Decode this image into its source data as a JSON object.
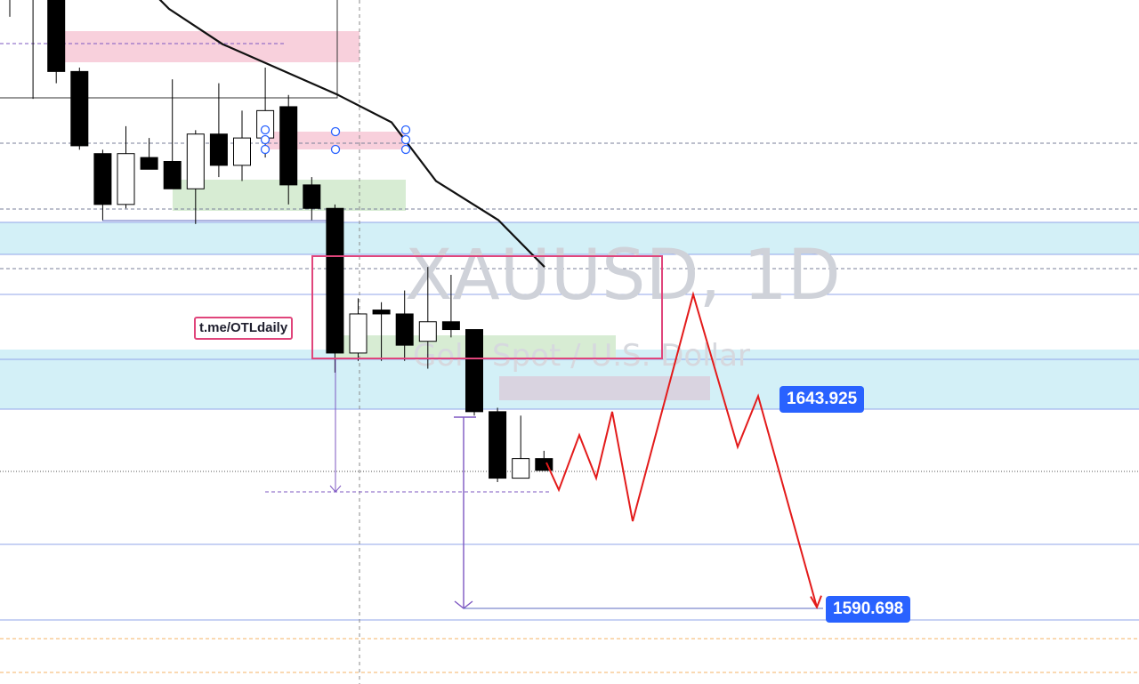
{
  "watermark": {
    "symbol": "XAUUSD, 1D",
    "description": "Gold Spot / U.S. Dollar"
  },
  "annotation": {
    "link_text": "t.me/OTLdaily"
  },
  "price_labels": {
    "upper": "1643.925",
    "lower": "1590.698"
  },
  "colors": {
    "bull_fill": "#ffffff",
    "bear_fill": "#000000",
    "supply_zone": "#f8d0dc",
    "demand_zone": "#d7ecd3",
    "blue_zone": "#d3f0f7",
    "grey_zone": "#d9cfdd",
    "projection": "#e31b1b",
    "price_tag": "#2962ff",
    "ma_line": "#111111",
    "measure": "#7e57c2",
    "range_box": "#e0457b"
  },
  "chart_data": {
    "type": "candlestick",
    "symbol": "XAUUSD",
    "timeframe": "1D",
    "candles": [
      {
        "o": 1750.0,
        "h": 1765.0,
        "l": 1742.0,
        "c": 1748.0
      },
      {
        "o": 1748.0,
        "h": 1755.0,
        "l": 1721.0,
        "c": 1748.0
      },
      {
        "o": 1747.0,
        "h": 1752.0,
        "l": 1725.0,
        "c": 1728.0
      },
      {
        "o": 1728.0,
        "h": 1729.0,
        "l": 1708.0,
        "c": 1709.0
      },
      {
        "o": 1707.0,
        "h": 1708.0,
        "l": 1690.0,
        "c": 1694.0
      },
      {
        "o": 1694.0,
        "h": 1714.0,
        "l": 1693.0,
        "c": 1707.0
      },
      {
        "o": 1706.0,
        "h": 1711.0,
        "l": 1704.0,
        "c": 1703.0
      },
      {
        "o": 1705.0,
        "h": 1726.0,
        "l": 1700.0,
        "c": 1698.0
      },
      {
        "o": 1698.0,
        "h": 1713.0,
        "l": 1689.0,
        "c": 1712.0
      },
      {
        "o": 1712.0,
        "h": 1725.0,
        "l": 1701.0,
        "c": 1704.0
      },
      {
        "o": 1704.0,
        "h": 1718.0,
        "l": 1700.0,
        "c": 1711.0
      },
      {
        "o": 1711.0,
        "h": 1729.0,
        "l": 1706.0,
        "c": 1718.0
      },
      {
        "o": 1719.0,
        "h": 1722.0,
        "l": 1694.0,
        "c": 1699.0
      },
      {
        "o": 1699.0,
        "h": 1701.0,
        "l": 1690.0,
        "c": 1693.0
      },
      {
        "o": 1693.0,
        "h": 1694.0,
        "l": 1651.0,
        "c": 1656.0
      },
      {
        "o": 1656.0,
        "h": 1670.0,
        "l": 1654.0,
        "c": 1666.0
      },
      {
        "o": 1667.0,
        "h": 1669.0,
        "l": 1654.0,
        "c": 1666.0
      },
      {
        "o": 1666.0,
        "h": 1672.0,
        "l": 1654.0,
        "c": 1658.0
      },
      {
        "o": 1659.0,
        "h": 1678.0,
        "l": 1652.0,
        "c": 1664.0
      },
      {
        "o": 1664.0,
        "h": 1676.0,
        "l": 1660.0,
        "c": 1662.0
      },
      {
        "o": 1662.0,
        "h": 1662.0,
        "l": 1640.0,
        "c": 1641.0
      },
      {
        "o": 1641.0,
        "h": 1642.0,
        "l": 1623.0,
        "c": 1624.0
      },
      {
        "o": 1624.0,
        "h": 1640.0,
        "l": 1624.0,
        "c": 1629.0
      },
      {
        "o": 1629.0,
        "h": 1631.0,
        "l": 1626.0,
        "c": 1626.0
      }
    ],
    "moving_average": [
      1760.0,
      1744.0,
      1735.0,
      1727.0,
      1722.0,
      1715.0,
      1700.0,
      1690.0,
      1678.0
    ],
    "price_scale": {
      "y1": 1643.925,
      "y2": 1590.698
    },
    "ylim": [
      1570.0,
      1770.0
    ],
    "labels": [
      {
        "text": "1643.925",
        "price": 1643.925
      },
      {
        "text": "1590.698",
        "price": 1590.698
      }
    ],
    "projection_path": [
      1628,
      1621,
      1635,
      1624,
      1641,
      1613,
      1671,
      1632,
      1645,
      1591
    ],
    "grid": false
  }
}
